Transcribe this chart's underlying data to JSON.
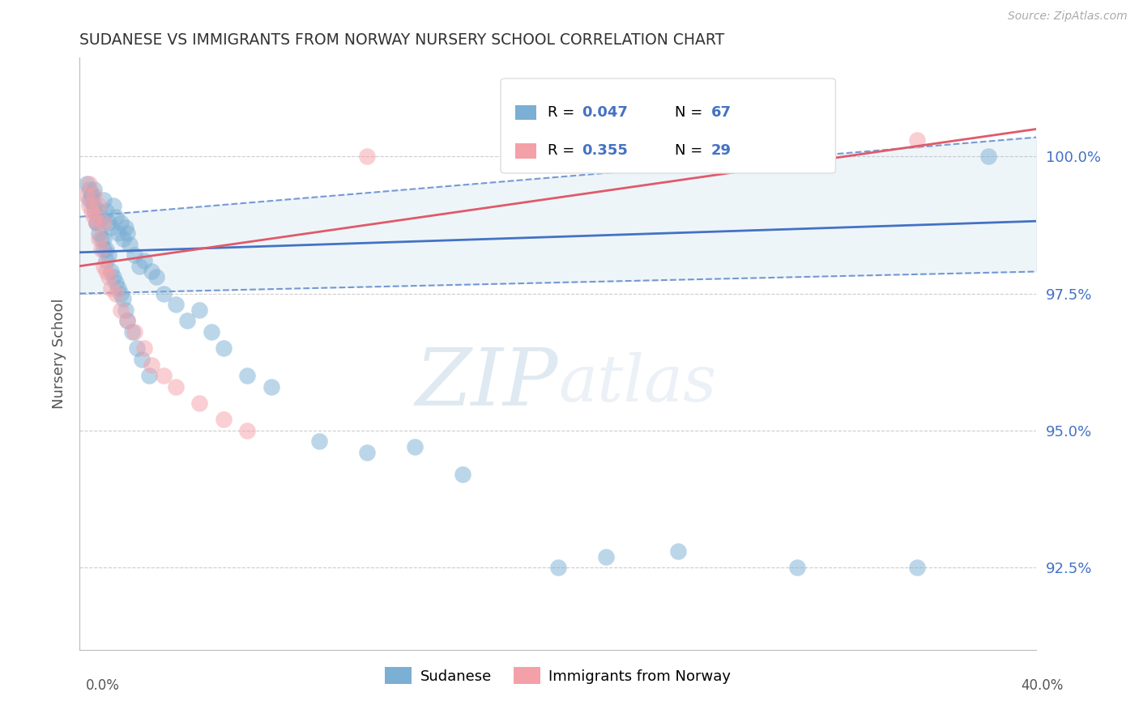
{
  "title": "SUDANESE VS IMMIGRANTS FROM NORWAY NURSERY SCHOOL CORRELATION CHART",
  "source_text": "Source: ZipAtlas.com",
  "ylabel": "Nursery School",
  "ytick_labels": [
    "92.5%",
    "95.0%",
    "97.5%",
    "100.0%"
  ],
  "ytick_values": [
    92.5,
    95.0,
    97.5,
    100.0
  ],
  "xlim": [
    0.0,
    40.0
  ],
  "ylim": [
    91.0,
    101.8
  ],
  "blue_color": "#7bafd4",
  "pink_color": "#f4a0a8",
  "trend_blue_color": "#4472c4",
  "trend_pink_color": "#e05a6a",
  "r_blue": "0.047",
  "n_blue": "67",
  "r_pink": "0.355",
  "n_pink": "29",
  "watermark_zip": "ZIP",
  "watermark_atlas": "atlas",
  "blue_scatter_x": [
    0.3,
    0.4,
    0.5,
    0.6,
    0.8,
    0.9,
    1.0,
    1.1,
    1.2,
    1.3,
    1.4,
    1.5,
    1.6,
    1.7,
    1.8,
    1.9,
    2.0,
    2.1,
    2.3,
    2.5,
    2.7,
    3.0,
    3.2,
    3.5,
    0.5,
    0.6,
    0.7,
    0.8,
    1.0,
    1.1,
    1.2,
    1.4,
    1.6,
    1.8,
    0.4,
    0.5,
    0.6,
    0.7,
    0.9,
    1.0,
    1.1,
    1.3,
    1.5,
    1.7,
    1.9,
    2.0,
    2.2,
    2.4,
    2.6,
    2.9,
    4.0,
    4.5,
    5.0,
    5.5,
    6.0,
    7.0,
    8.0,
    10.0,
    12.0,
    14.0,
    16.0,
    20.0,
    25.0,
    30.0,
    35.0,
    38.0,
    22.0
  ],
  "blue_scatter_y": [
    99.5,
    99.2,
    99.3,
    99.4,
    99.0,
    98.9,
    99.2,
    99.0,
    98.8,
    98.7,
    99.1,
    98.9,
    98.6,
    98.8,
    98.5,
    98.7,
    98.6,
    98.4,
    98.2,
    98.0,
    98.1,
    97.9,
    97.8,
    97.5,
    99.3,
    99.1,
    98.8,
    98.6,
    98.5,
    98.3,
    98.2,
    97.8,
    97.6,
    97.4,
    99.4,
    99.2,
    99.0,
    98.8,
    98.5,
    98.3,
    98.1,
    97.9,
    97.7,
    97.5,
    97.2,
    97.0,
    96.8,
    96.5,
    96.3,
    96.0,
    97.3,
    97.0,
    97.2,
    96.8,
    96.5,
    96.0,
    95.8,
    94.8,
    94.6,
    94.7,
    94.2,
    92.5,
    92.8,
    92.5,
    92.5,
    100.0,
    92.7
  ],
  "pink_scatter_x": [
    0.3,
    0.4,
    0.5,
    0.6,
    0.7,
    0.8,
    0.9,
    1.0,
    1.1,
    1.2,
    1.3,
    1.5,
    1.7,
    2.0,
    2.3,
    2.7,
    3.0,
    3.5,
    4.0,
    5.0,
    6.0,
    7.0,
    12.0,
    25.0,
    35.0,
    0.4,
    0.6,
    0.8,
    1.0
  ],
  "pink_scatter_y": [
    99.3,
    99.1,
    99.0,
    98.9,
    98.8,
    98.5,
    98.3,
    98.0,
    97.9,
    97.8,
    97.6,
    97.5,
    97.2,
    97.0,
    96.8,
    96.5,
    96.2,
    96.0,
    95.8,
    95.5,
    95.2,
    95.0,
    100.0,
    100.2,
    100.3,
    99.5,
    99.3,
    99.1,
    98.8
  ],
  "blue_trend": [
    98.25,
    98.82
  ],
  "pink_trend": [
    98.0,
    100.5
  ],
  "ci_upper": [
    98.9,
    100.35
  ],
  "ci_lower": [
    97.5,
    97.9
  ]
}
